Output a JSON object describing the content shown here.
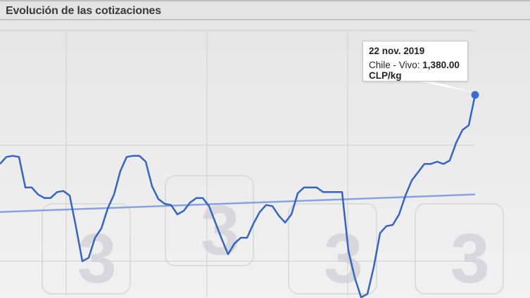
{
  "header": {
    "title": "Evolución de las cotizaciones"
  },
  "tooltip": {
    "date": "22 nov. 2019",
    "series_label": "Chile - Vivo:",
    "value": "1,380.00 CLP/kg"
  },
  "chart_data": {
    "type": "line",
    "title": "",
    "xlabel": "",
    "ylabel": "",
    "unit": "CLP/kg",
    "grid": true,
    "ylim": [
      1207,
      1435
    ],
    "series": [
      {
        "color": "#3464c8",
        "values": [
          1321,
          1327,
          1328,
          1327,
          1301,
          1301,
          1295,
          1292,
          1292,
          1297,
          1298,
          1294,
          1267,
          1238,
          1241,
          1258,
          1266,
          1283,
          1295,
          1315,
          1327,
          1328,
          1328,
          1323,
          1302,
          1291,
          1287,
          1286,
          1278,
          1281,
          1288,
          1292,
          1292,
          1285,
          1271,
          1257,
          1244,
          1253,
          1258,
          1258,
          1270,
          1280,
          1286,
          1285,
          1277,
          1271,
          1278,
          1296,
          1301,
          1301,
          1301,
          1297,
          1297,
          1297,
          1297,
          1247,
          1224,
          1207,
          1210,
          1233,
          1262,
          1268,
          1269,
          1278,
          1294,
          1307,
          1314,
          1321,
          1321,
          1323,
          1321,
          1324,
          1339,
          1350,
          1354,
          1380
        ]
      },
      {
        "color": "#86a3e0",
        "kind": "trend",
        "values": [
          1280,
          1295
        ]
      }
    ],
    "highlight": {
      "date": "22 nov. 2019",
      "value": 1380
    }
  }
}
